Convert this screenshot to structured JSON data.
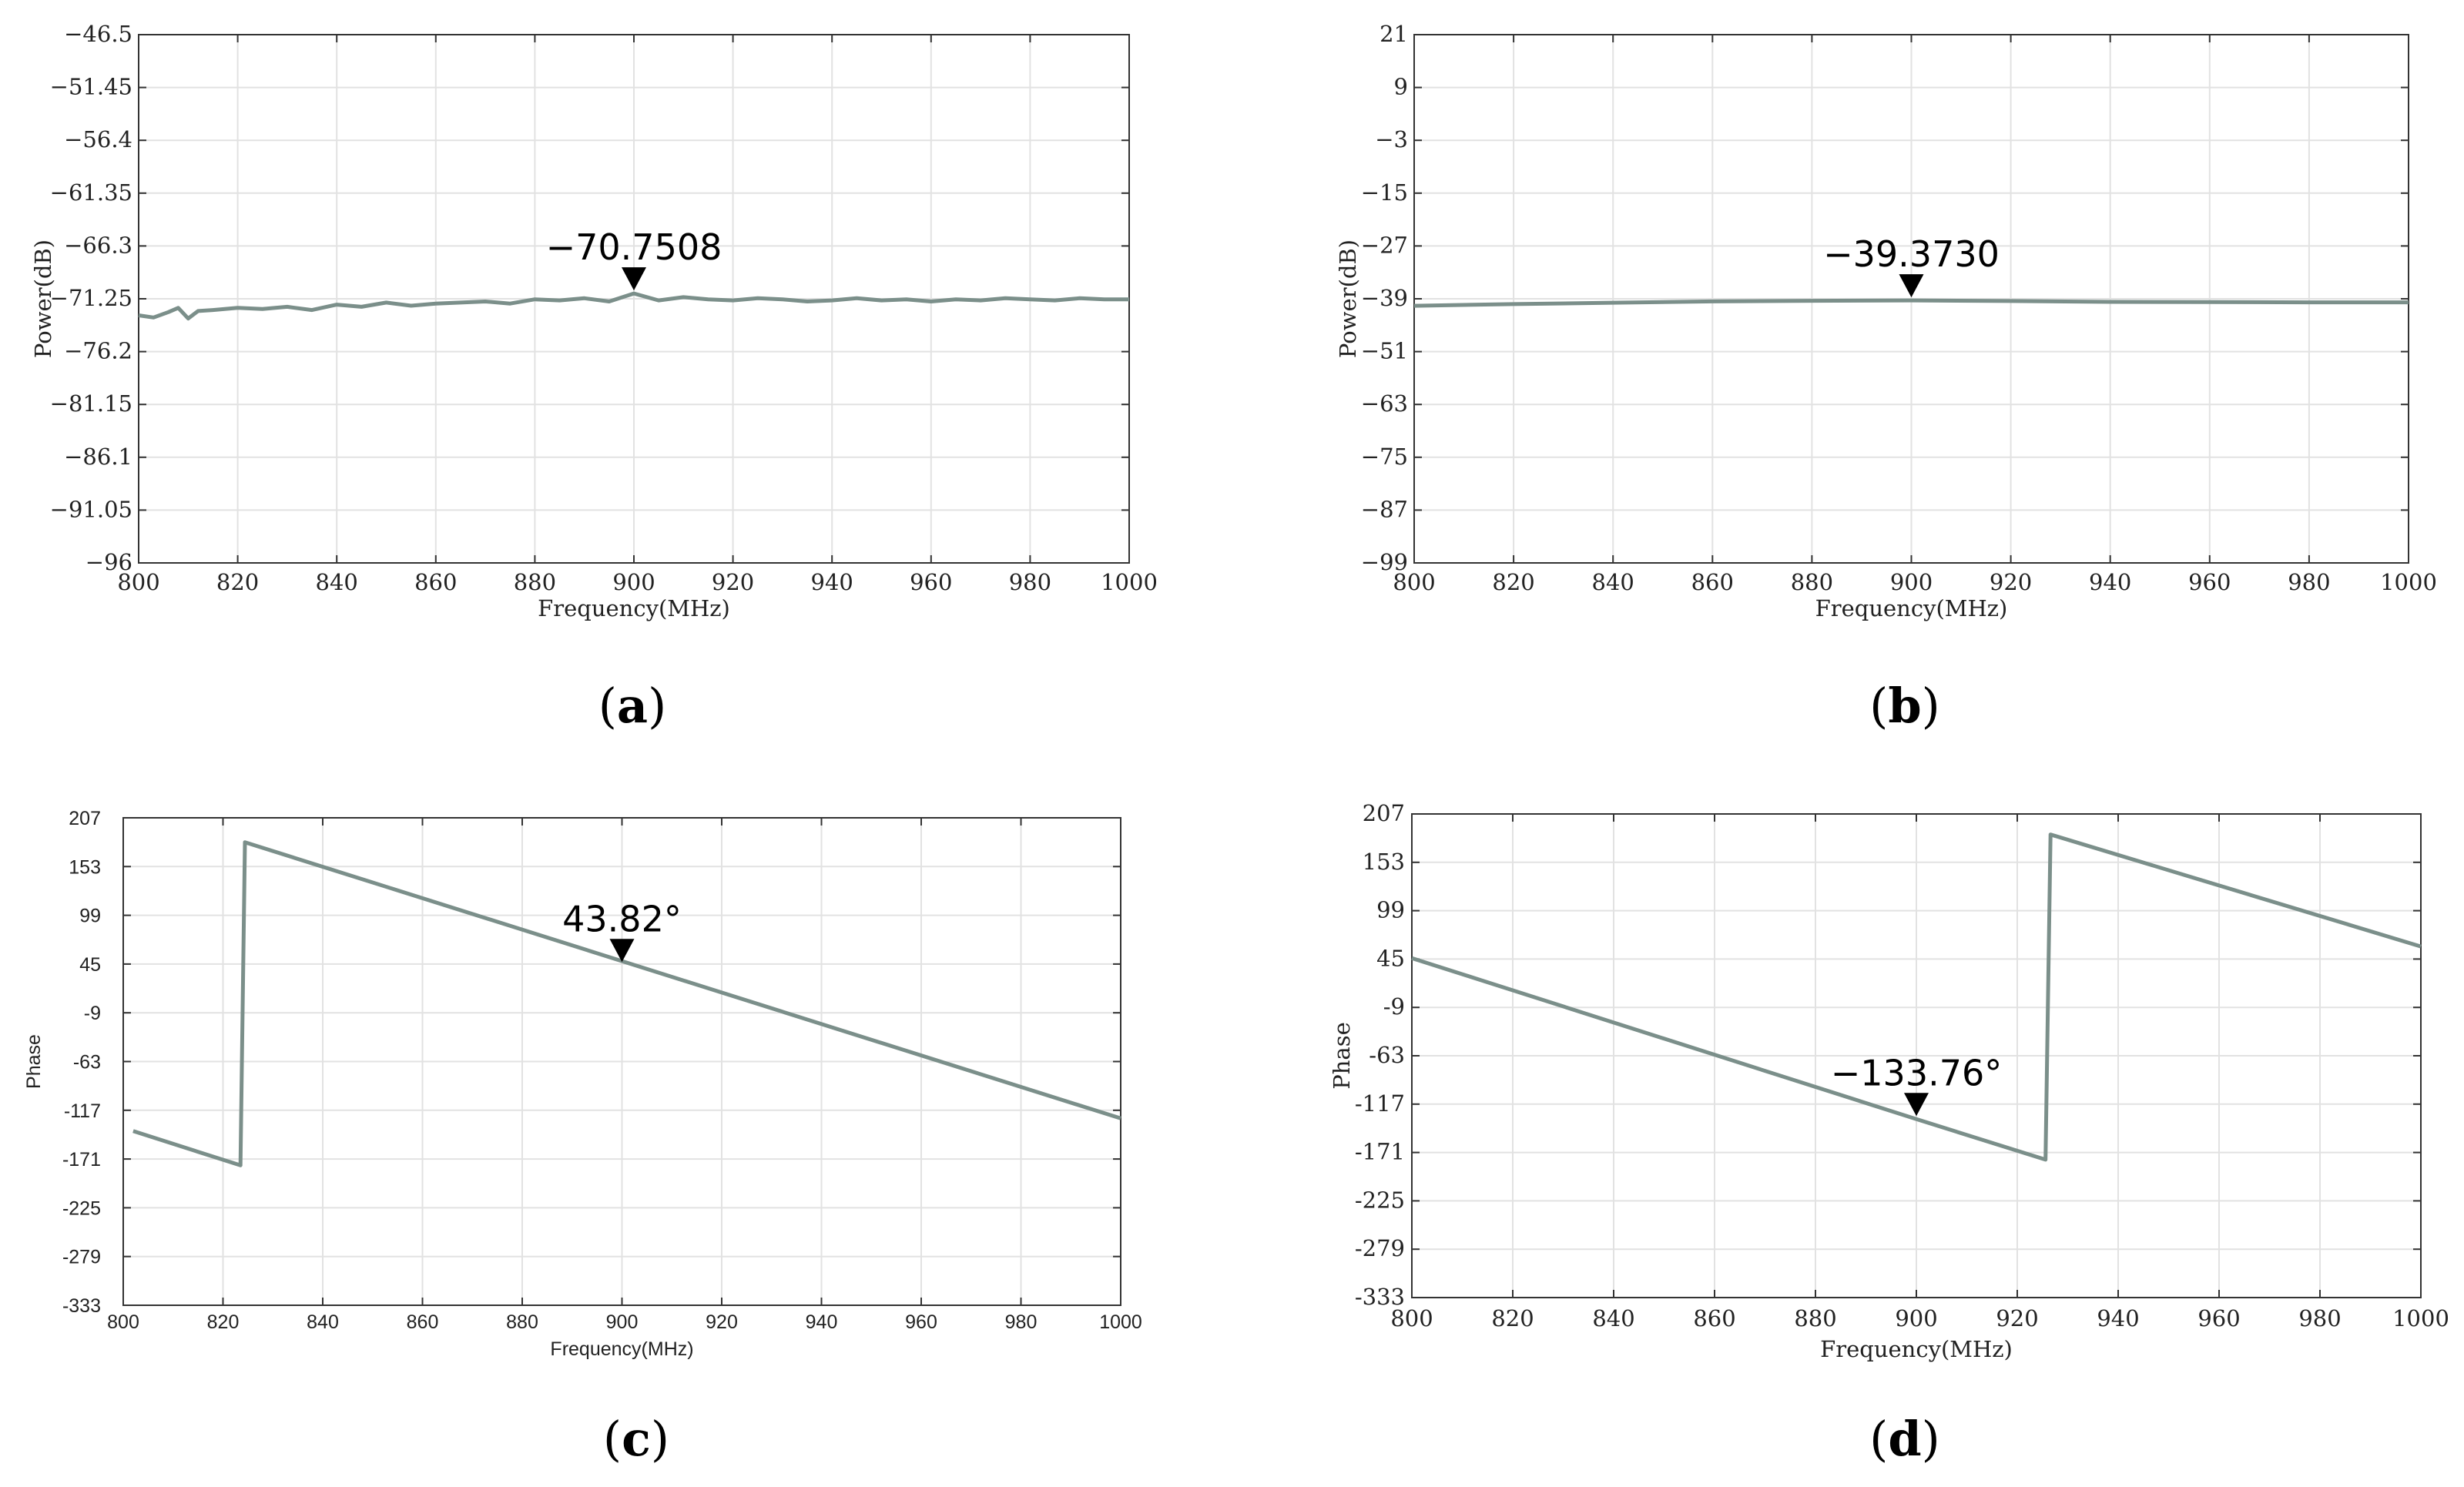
{
  "chart_data": [
    {
      "id": "a",
      "type": "line",
      "caption": "a",
      "xlabel": "Frequency(MHz)",
      "ylabel": "Power(dB)",
      "xlim": [
        800,
        1000
      ],
      "ylim": [
        -96,
        -46.5
      ],
      "xticks": [
        800,
        820,
        840,
        860,
        880,
        900,
        920,
        940,
        960,
        980,
        1000
      ],
      "yticks": [
        -46.5,
        -51.45,
        -56.4,
        -61.35,
        -66.3,
        -71.25,
        -76.2,
        -81.15,
        -86.1,
        -91.05,
        -96
      ],
      "ytick_labels": [
        "−46.5",
        "−51.45",
        "−56.4",
        "−61.35",
        "−66.3",
        "−71.25",
        "−76.2",
        "−81.15",
        "−86.1",
        "−91.05",
        "−96"
      ],
      "grid": true,
      "series": [
        {
          "name": "Power",
          "color": "#7b8f8a",
          "x": [
            800,
            803,
            806,
            808,
            810,
            812,
            815,
            820,
            825,
            830,
            835,
            840,
            845,
            850,
            855,
            860,
            865,
            870,
            875,
            880,
            885,
            890,
            895,
            900,
            905,
            910,
            915,
            920,
            925,
            930,
            935,
            940,
            945,
            950,
            955,
            960,
            965,
            970,
            975,
            980,
            985,
            990,
            995,
            1000
          ],
          "y": [
            -72.8,
            -73.0,
            -72.5,
            -72.1,
            -73.1,
            -72.4,
            -72.3,
            -72.1,
            -72.2,
            -72.0,
            -72.3,
            -71.8,
            -72.0,
            -71.6,
            -71.9,
            -71.7,
            -71.6,
            -71.5,
            -71.7,
            -71.3,
            -71.4,
            -71.2,
            -71.5,
            -70.75,
            -71.4,
            -71.1,
            -71.3,
            -71.4,
            -71.2,
            -71.3,
            -71.5,
            -71.4,
            -71.2,
            -71.4,
            -71.3,
            -71.5,
            -71.3,
            -71.4,
            -71.2,
            -71.3,
            -71.4,
            -71.2,
            -71.3,
            -71.3
          ]
        }
      ],
      "annotation": {
        "x": 900,
        "y": -70.7508,
        "label": "−70.7508"
      }
    },
    {
      "id": "b",
      "type": "line",
      "caption": "b",
      "xlabel": "Frequency(MHz)",
      "ylabel": "Power(dB)",
      "xlim": [
        800,
        1000
      ],
      "ylim": [
        -99,
        21
      ],
      "xticks": [
        800,
        820,
        840,
        860,
        880,
        900,
        920,
        940,
        960,
        980,
        1000
      ],
      "yticks": [
        21,
        9,
        -3,
        -15,
        -27,
        -39,
        -51,
        -63,
        -75,
        -87,
        -99
      ],
      "ytick_labels": [
        "21",
        "9",
        "−3",
        "−15",
        "−27",
        "−39",
        "−51",
        "−63",
        "−75",
        "−87",
        "−99"
      ],
      "grid": true,
      "series": [
        {
          "name": "Power",
          "color": "#7b8f8a",
          "x": [
            800,
            820,
            840,
            860,
            880,
            900,
            920,
            940,
            960,
            980,
            1000
          ],
          "y": [
            -40.6,
            -40.2,
            -39.9,
            -39.6,
            -39.45,
            -39.373,
            -39.5,
            -39.7,
            -39.75,
            -39.8,
            -39.8
          ]
        }
      ],
      "annotation": {
        "x": 900,
        "y": -39.373,
        "label": "−39.3730"
      }
    },
    {
      "id": "c",
      "type": "line",
      "caption": "c",
      "xlabel": "Frequency(MHz)",
      "ylabel": "Phase",
      "xlim": [
        800,
        1000
      ],
      "ylim": [
        -333,
        207
      ],
      "xticks": [
        800,
        820,
        840,
        860,
        880,
        900,
        920,
        940,
        960,
        980,
        1000
      ],
      "yticks": [
        207,
        153,
        99,
        45,
        -9,
        -63,
        -117,
        -171,
        -225,
        -279,
        -333
      ],
      "ytick_labels": [
        "207",
        "153",
        "99",
        "45",
        "-9",
        "-63",
        "-117",
        "-171",
        "-225",
        "-279",
        "-333"
      ],
      "grid": true,
      "series": [
        {
          "name": "Phase",
          "color": "#7b8f8a",
          "x": [
            802,
            823.5,
            824.4,
            1000
          ],
          "y": [
            -140,
            -178,
            180,
            -126
          ]
        }
      ],
      "annotation": {
        "x": 900,
        "y": 43.82,
        "label": "43.82°"
      }
    },
    {
      "id": "d",
      "type": "line",
      "caption": "d",
      "xlabel": "Frequency(MHz)",
      "ylabel": "Phase",
      "xlim": [
        800,
        1000
      ],
      "ylim": [
        -333,
        207
      ],
      "xticks": [
        800,
        820,
        840,
        860,
        880,
        900,
        920,
        940,
        960,
        980,
        1000
      ],
      "yticks": [
        207,
        153,
        99,
        45,
        -9,
        -63,
        -117,
        -171,
        -225,
        -279,
        -333
      ],
      "ytick_labels": [
        "207",
        "153",
        "99",
        "45",
        "-9",
        "-63",
        "-117",
        "-171",
        "-225",
        "-279",
        "-333"
      ],
      "grid": true,
      "series": [
        {
          "name": "Phase",
          "color": "#7b8f8a",
          "x": [
            800,
            900,
            925.6,
            926.6,
            1000
          ],
          "y": [
            46,
            -133.76,
            -179,
            184,
            59
          ]
        }
      ],
      "annotation": {
        "x": 900,
        "y": -133.76,
        "label": "−133.76°"
      }
    }
  ]
}
